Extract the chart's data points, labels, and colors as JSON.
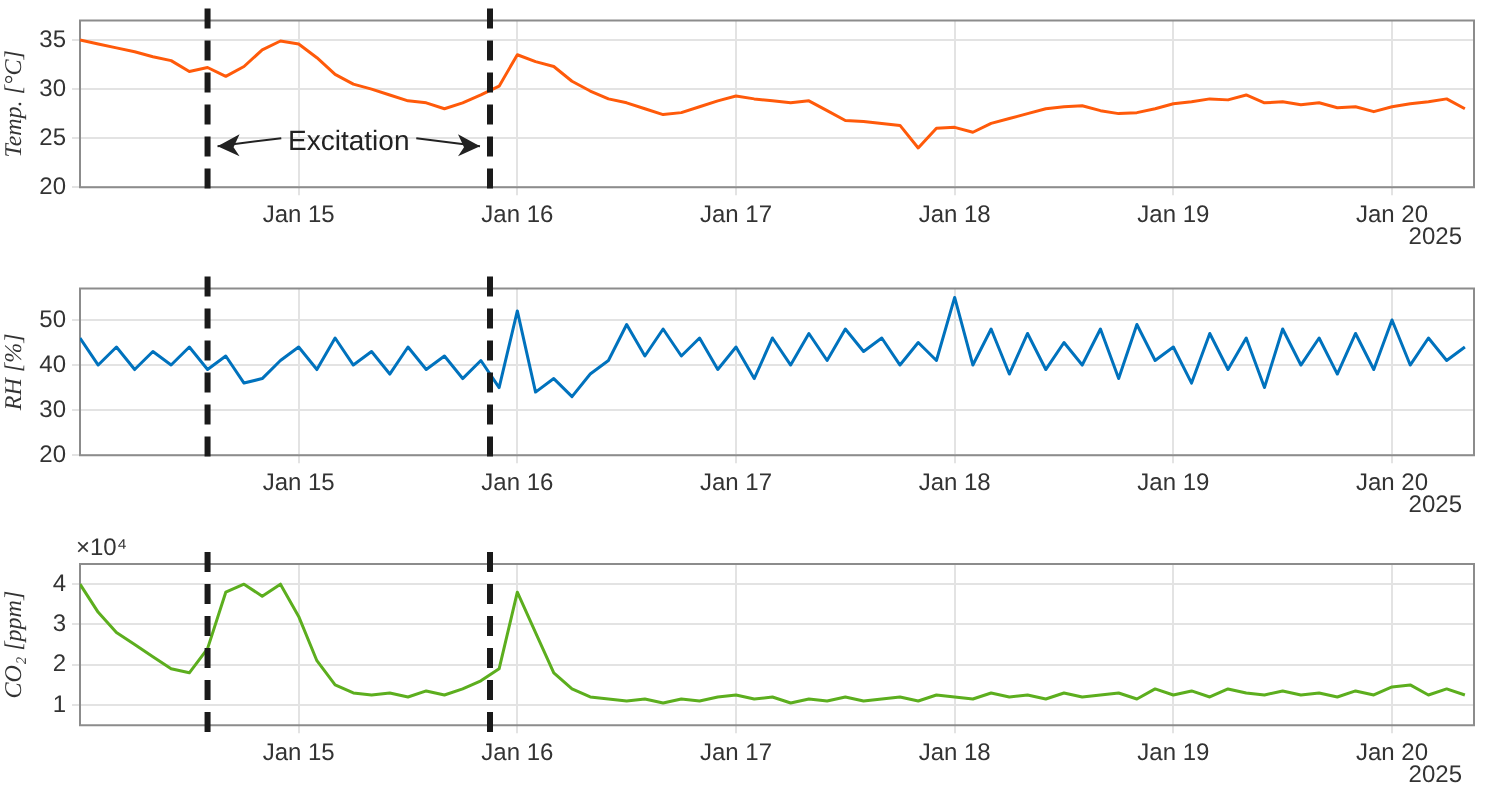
{
  "chart_data": [
    {
      "type": "line",
      "ylabel": "Temp. [°C]",
      "color": "#ff5a0a",
      "marker": "none",
      "line_style": "solid",
      "grid": true,
      "legend": false,
      "x": [
        "2025-01-14T00:00",
        "2025-01-14T02:00",
        "2025-01-14T04:00",
        "2025-01-14T06:00",
        "2025-01-14T08:00",
        "2025-01-14T10:00",
        "2025-01-14T12:00",
        "2025-01-14T14:00",
        "2025-01-14T16:00",
        "2025-01-14T18:00",
        "2025-01-14T20:00",
        "2025-01-14T22:00",
        "2025-01-15T00:00",
        "2025-01-15T02:00",
        "2025-01-15T04:00",
        "2025-01-15T06:00",
        "2025-01-15T08:00",
        "2025-01-15T10:00",
        "2025-01-15T12:00",
        "2025-01-15T14:00",
        "2025-01-15T16:00",
        "2025-01-15T18:00",
        "2025-01-15T20:00",
        "2025-01-15T22:00",
        "2025-01-16T00:00",
        "2025-01-16T02:00",
        "2025-01-16T04:00",
        "2025-01-16T06:00",
        "2025-01-16T08:00",
        "2025-01-16T10:00",
        "2025-01-16T12:00",
        "2025-01-16T14:00",
        "2025-01-16T16:00",
        "2025-01-16T18:00",
        "2025-01-16T20:00",
        "2025-01-16T22:00",
        "2025-01-17T00:00",
        "2025-01-17T02:00",
        "2025-01-17T04:00",
        "2025-01-17T06:00",
        "2025-01-17T08:00",
        "2025-01-17T10:00",
        "2025-01-17T12:00",
        "2025-01-17T14:00",
        "2025-01-17T16:00",
        "2025-01-17T18:00",
        "2025-01-17T20:00",
        "2025-01-17T22:00",
        "2025-01-18T00:00",
        "2025-01-18T02:00",
        "2025-01-18T04:00",
        "2025-01-18T06:00",
        "2025-01-18T08:00",
        "2025-01-18T10:00",
        "2025-01-18T12:00",
        "2025-01-18T14:00",
        "2025-01-18T16:00",
        "2025-01-18T18:00",
        "2025-01-18T20:00",
        "2025-01-18T22:00",
        "2025-01-19T00:00",
        "2025-01-19T02:00",
        "2025-01-19T04:00",
        "2025-01-19T06:00",
        "2025-01-19T08:00",
        "2025-01-19T10:00",
        "2025-01-19T12:00",
        "2025-01-19T14:00",
        "2025-01-19T16:00",
        "2025-01-19T18:00",
        "2025-01-19T20:00",
        "2025-01-19T22:00",
        "2025-01-20T00:00",
        "2025-01-20T02:00",
        "2025-01-20T04:00",
        "2025-01-20T06:00",
        "2025-01-20T08:00"
      ],
      "values": [
        35,
        34.6,
        34.2,
        33.8,
        33.3,
        32.9,
        31.8,
        32.2,
        31.3,
        32.3,
        34.0,
        34.9,
        34.6,
        33.2,
        31.5,
        30.5,
        30.0,
        29.4,
        28.8,
        28.6,
        28.0,
        28.6,
        29.4,
        30.3,
        33.5,
        32.8,
        32.3,
        30.8,
        29.8,
        29.0,
        28.6,
        28.0,
        27.4,
        27.6,
        28.2,
        28.8,
        29.3,
        29.0,
        28.8,
        28.6,
        28.8,
        27.8,
        26.8,
        26.7,
        26.5,
        26.3,
        24.0,
        26.0,
        26.1,
        25.6,
        26.5,
        27.0,
        27.5,
        28.0,
        28.2,
        28.3,
        27.8,
        27.5,
        27.6,
        28.0,
        28.5,
        28.7,
        29.0,
        28.9,
        29.4,
        28.6,
        28.7,
        28.4,
        28.6,
        28.1,
        28.2,
        27.7,
        28.2,
        28.5,
        28.7,
        29.0,
        28.0
      ],
      "xlim": [
        "2025-01-14T00:00",
        "2025-01-20T09:00"
      ],
      "xticks": [
        {
          "value": "2025-01-15",
          "label": "Jan 15"
        },
        {
          "value": "2025-01-16",
          "label": "Jan 16"
        },
        {
          "value": "2025-01-17",
          "label": "Jan 17"
        },
        {
          "value": "2025-01-18",
          "label": "Jan 18"
        },
        {
          "value": "2025-01-19",
          "label": "Jan 19"
        },
        {
          "value": "2025-01-20",
          "label": "Jan 20"
        }
      ],
      "ylim": [
        20,
        37
      ],
      "yticks": [
        20,
        25,
        30,
        35
      ],
      "ref_lines": [
        {
          "axis": "x",
          "value": "2025-01-14T14:00",
          "color": "#1a1a1a",
          "line_style": "dashed"
        },
        {
          "axis": "x",
          "value": "2025-01-15T21:00",
          "color": "#1a1a1a",
          "line_style": "dashed"
        }
      ],
      "annotations": [
        "Excitation",
        "2025"
      ]
    },
    {
      "type": "line",
      "ylabel": "RH [%]",
      "color": "#0072bd",
      "marker": "none",
      "line_style": "solid",
      "grid": true,
      "legend": false,
      "x": [
        "2025-01-14T00:00",
        "2025-01-14T02:00",
        "2025-01-14T04:00",
        "2025-01-14T06:00",
        "2025-01-14T08:00",
        "2025-01-14T10:00",
        "2025-01-14T12:00",
        "2025-01-14T14:00",
        "2025-01-14T16:00",
        "2025-01-14T18:00",
        "2025-01-14T20:00",
        "2025-01-14T22:00",
        "2025-01-15T00:00",
        "2025-01-15T02:00",
        "2025-01-15T04:00",
        "2025-01-15T06:00",
        "2025-01-15T08:00",
        "2025-01-15T10:00",
        "2025-01-15T12:00",
        "2025-01-15T14:00",
        "2025-01-15T16:00",
        "2025-01-15T18:00",
        "2025-01-15T20:00",
        "2025-01-15T22:00",
        "2025-01-16T00:00",
        "2025-01-16T02:00",
        "2025-01-16T04:00",
        "2025-01-16T06:00",
        "2025-01-16T08:00",
        "2025-01-16T10:00",
        "2025-01-16T12:00",
        "2025-01-16T14:00",
        "2025-01-16T16:00",
        "2025-01-16T18:00",
        "2025-01-16T20:00",
        "2025-01-16T22:00",
        "2025-01-17T00:00",
        "2025-01-17T02:00",
        "2025-01-17T04:00",
        "2025-01-17T06:00",
        "2025-01-17T08:00",
        "2025-01-17T10:00",
        "2025-01-17T12:00",
        "2025-01-17T14:00",
        "2025-01-17T16:00",
        "2025-01-17T18:00",
        "2025-01-17T20:00",
        "2025-01-17T22:00",
        "2025-01-18T00:00",
        "2025-01-18T02:00",
        "2025-01-18T04:00",
        "2025-01-18T06:00",
        "2025-01-18T08:00",
        "2025-01-18T10:00",
        "2025-01-18T12:00",
        "2025-01-18T14:00",
        "2025-01-18T16:00",
        "2025-01-18T18:00",
        "2025-01-18T20:00",
        "2025-01-18T22:00",
        "2025-01-19T00:00",
        "2025-01-19T02:00",
        "2025-01-19T04:00",
        "2025-01-19T06:00",
        "2025-01-19T08:00",
        "2025-01-19T10:00",
        "2025-01-19T12:00",
        "2025-01-19T14:00",
        "2025-01-19T16:00",
        "2025-01-19T18:00",
        "2025-01-19T20:00",
        "2025-01-19T22:00",
        "2025-01-20T00:00",
        "2025-01-20T02:00",
        "2025-01-20T04:00",
        "2025-01-20T06:00",
        "2025-01-20T08:00"
      ],
      "values": [
        46,
        40,
        44,
        39,
        43,
        40,
        44,
        39,
        42,
        36,
        37,
        41,
        44,
        39,
        46,
        40,
        43,
        38,
        44,
        39,
        42,
        37,
        41,
        35,
        52,
        34,
        37,
        33,
        38,
        41,
        49,
        42,
        48,
        42,
        46,
        39,
        44,
        37,
        46,
        40,
        47,
        41,
        48,
        43,
        46,
        40,
        45,
        41,
        55,
        40,
        48,
        38,
        47,
        39,
        45,
        40,
        48,
        37,
        49,
        41,
        44,
        36,
        47,
        39,
        46,
        35,
        48,
        40,
        46,
        38,
        47,
        39,
        50,
        40,
        46,
        41,
        44
      ],
      "xlim": [
        "2025-01-14T00:00",
        "2025-01-20T09:00"
      ],
      "xticks": [
        {
          "value": "2025-01-15",
          "label": "Jan 15"
        },
        {
          "value": "2025-01-16",
          "label": "Jan 16"
        },
        {
          "value": "2025-01-17",
          "label": "Jan 17"
        },
        {
          "value": "2025-01-18",
          "label": "Jan 18"
        },
        {
          "value": "2025-01-19",
          "label": "Jan 19"
        },
        {
          "value": "2025-01-20",
          "label": "Jan 20"
        }
      ],
      "ylim": [
        20,
        57
      ],
      "yticks": [
        20,
        30,
        40,
        50
      ],
      "ref_lines": [
        {
          "axis": "x",
          "value": "2025-01-14T14:00",
          "color": "#1a1a1a",
          "line_style": "dashed"
        },
        {
          "axis": "x",
          "value": "2025-01-15T21:00",
          "color": "#1a1a1a",
          "line_style": "dashed"
        }
      ],
      "annotations": [
        "2025"
      ]
    },
    {
      "type": "line",
      "ylabel": "CO₂ [ppm]",
      "color": "#5cae1e",
      "marker": "none",
      "line_style": "solid",
      "grid": true,
      "legend": false,
      "x": [
        "2025-01-14T00:00",
        "2025-01-14T02:00",
        "2025-01-14T04:00",
        "2025-01-14T06:00",
        "2025-01-14T08:00",
        "2025-01-14T10:00",
        "2025-01-14T12:00",
        "2025-01-14T14:00",
        "2025-01-14T16:00",
        "2025-01-14T18:00",
        "2025-01-14T20:00",
        "2025-01-14T22:00",
        "2025-01-15T00:00",
        "2025-01-15T02:00",
        "2025-01-15T04:00",
        "2025-01-15T06:00",
        "2025-01-15T08:00",
        "2025-01-15T10:00",
        "2025-01-15T12:00",
        "2025-01-15T14:00",
        "2025-01-15T16:00",
        "2025-01-15T18:00",
        "2025-01-15T20:00",
        "2025-01-15T22:00",
        "2025-01-16T00:00",
        "2025-01-16T02:00",
        "2025-01-16T04:00",
        "2025-01-16T06:00",
        "2025-01-16T08:00",
        "2025-01-16T10:00",
        "2025-01-16T12:00",
        "2025-01-16T14:00",
        "2025-01-16T16:00",
        "2025-01-16T18:00",
        "2025-01-16T20:00",
        "2025-01-16T22:00",
        "2025-01-17T00:00",
        "2025-01-17T02:00",
        "2025-01-17T04:00",
        "2025-01-17T06:00",
        "2025-01-17T08:00",
        "2025-01-17T10:00",
        "2025-01-17T12:00",
        "2025-01-17T14:00",
        "2025-01-17T16:00",
        "2025-01-17T18:00",
        "2025-01-17T20:00",
        "2025-01-17T22:00",
        "2025-01-18T00:00",
        "2025-01-18T02:00",
        "2025-01-18T04:00",
        "2025-01-18T06:00",
        "2025-01-18T08:00",
        "2025-01-18T10:00",
        "2025-01-18T12:00",
        "2025-01-18T14:00",
        "2025-01-18T16:00",
        "2025-01-18T18:00",
        "2025-01-18T20:00",
        "2025-01-18T22:00",
        "2025-01-19T00:00",
        "2025-01-19T02:00",
        "2025-01-19T04:00",
        "2025-01-19T06:00",
        "2025-01-19T08:00",
        "2025-01-19T10:00",
        "2025-01-19T12:00",
        "2025-01-19T14:00",
        "2025-01-19T16:00",
        "2025-01-19T18:00",
        "2025-01-19T20:00",
        "2025-01-19T22:00",
        "2025-01-20T00:00",
        "2025-01-20T02:00",
        "2025-01-20T04:00",
        "2025-01-20T06:00",
        "2025-01-20T08:00"
      ],
      "values": [
        4,
        3.3,
        2.8,
        2.5,
        2.2,
        1.9,
        1.8,
        2.4,
        3.8,
        4,
        3.7,
        4,
        3.2,
        2.1,
        1.5,
        1.3,
        1.25,
        1.3,
        1.2,
        1.35,
        1.25,
        1.4,
        1.6,
        1.9,
        3.8,
        2.8,
        1.8,
        1.4,
        1.2,
        1.15,
        1.1,
        1.15,
        1.05,
        1.15,
        1.1,
        1.2,
        1.25,
        1.15,
        1.2,
        1.05,
        1.15,
        1.1,
        1.2,
        1.1,
        1.15,
        1.2,
        1.1,
        1.25,
        1.2,
        1.15,
        1.3,
        1.2,
        1.25,
        1.15,
        1.3,
        1.2,
        1.25,
        1.3,
        1.15,
        1.4,
        1.25,
        1.35,
        1.2,
        1.4,
        1.3,
        1.25,
        1.35,
        1.25,
        1.3,
        1.2,
        1.35,
        1.25,
        1.45,
        1.5,
        1.25,
        1.4,
        1.25
      ],
      "xlim": [
        "2025-01-14T00:00",
        "2025-01-20T09:00"
      ],
      "xticks": [
        {
          "value": "2025-01-15",
          "label": "Jan 15"
        },
        {
          "value": "2025-01-16",
          "label": "Jan 16"
        },
        {
          "value": "2025-01-17",
          "label": "Jan 17"
        },
        {
          "value": "2025-01-18",
          "label": "Jan 18"
        },
        {
          "value": "2025-01-19",
          "label": "Jan 19"
        },
        {
          "value": "2025-01-20",
          "label": "Jan 20"
        }
      ],
      "ylim": [
        0.5,
        4.5
      ],
      "yticks": [
        1,
        2,
        3,
        4
      ],
      "ref_lines": [
        {
          "axis": "x",
          "value": "2025-01-14T14:00",
          "color": "#1a1a1a",
          "line_style": "dashed"
        },
        {
          "axis": "x",
          "value": "2025-01-15T21:00",
          "color": "#1a1a1a",
          "line_style": "dashed"
        }
      ],
      "annotations": [
        "×10⁴",
        "2025"
      ]
    }
  ]
}
